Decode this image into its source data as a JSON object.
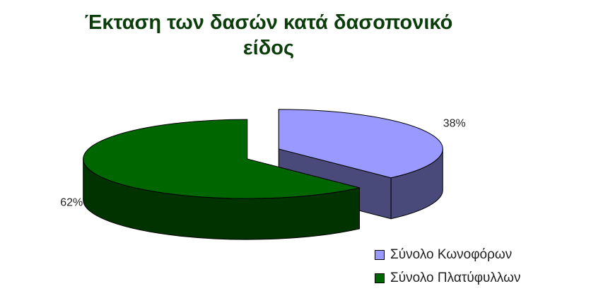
{
  "chart_data": {
    "type": "pie",
    "title_lines": [
      "Έκταση των δασών κατά δασοπονικό",
      "είδος"
    ],
    "slices": [
      {
        "name": "Σύνολο Κωνοφόρων",
        "value": 38,
        "label": "38%",
        "color": "#9999ff",
        "side_color": "#4a4a7a"
      },
      {
        "name": "Σύνολο Πλατύφυλλων",
        "value": 62,
        "label": "62%",
        "color": "#006600",
        "side_color": "#003300"
      }
    ],
    "legend_position": "bottom-right",
    "style": "3d-exploded"
  }
}
